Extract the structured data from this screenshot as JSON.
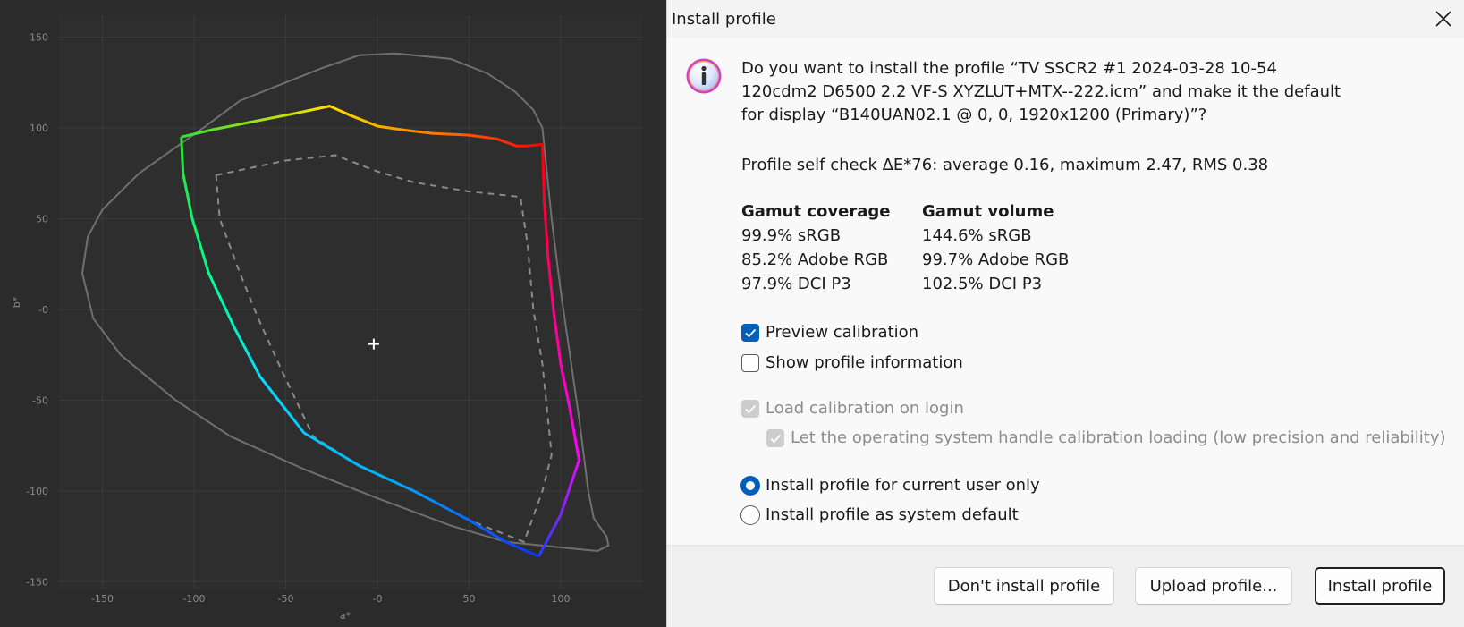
{
  "plot": {
    "x_label": "a*",
    "y_label": "b*",
    "x_ticks": [
      "-150",
      "-100",
      "-50",
      "-0",
      "50",
      "100"
    ],
    "y_ticks": [
      "150",
      "100",
      "50",
      "-0",
      "-50",
      "-100",
      "-150"
    ]
  },
  "chart_data": {
    "type": "line",
    "xlabel": "a*",
    "ylabel": "b*",
    "xlim": [
      -165,
      145
    ],
    "ylim": [
      -152,
      152
    ],
    "grid": true,
    "series": [
      {
        "points": [
          [
            -107,
            95
          ],
          [
            -90,
            99
          ],
          [
            -70,
            103
          ],
          [
            -45,
            108
          ],
          [
            -26,
            112
          ],
          [
            -15,
            107
          ],
          [
            0,
            101
          ],
          [
            13,
            99
          ],
          [
            30,
            97
          ],
          [
            50,
            96
          ],
          [
            65,
            94
          ],
          [
            76,
            90
          ],
          [
            82,
            90
          ],
          [
            90,
            91
          ],
          [
            91,
            60
          ],
          [
            93,
            30
          ],
          [
            96,
            0
          ],
          [
            100,
            -30
          ],
          [
            105,
            -55
          ],
          [
            110,
            -83
          ],
          [
            100,
            -113
          ],
          [
            88,
            -136
          ],
          [
            70,
            -128
          ],
          [
            50,
            -116
          ],
          [
            20,
            -100
          ],
          [
            -10,
            -86
          ],
          [
            -40,
            -68
          ],
          [
            -64,
            -37
          ],
          [
            -78,
            -10
          ],
          [
            -92,
            20
          ],
          [
            -101,
            50
          ],
          [
            -106,
            75
          ],
          [
            -107,
            95
          ]
        ],
        "colors": [
          "#32e032",
          "#ffe000",
          "#ff7a00",
          "#ff0000",
          "#ff00ff",
          "#2040ff",
          "#00e0ff",
          "#32e032"
        ]
      },
      {
        "points": [
          [
            -88,
            74
          ],
          [
            -50,
            82
          ],
          [
            -23,
            85
          ],
          [
            0,
            76
          ],
          [
            20,
            70
          ],
          [
            50,
            65
          ],
          [
            78,
            62
          ],
          [
            82,
            35
          ],
          [
            85,
            0
          ],
          [
            90,
            -30
          ],
          [
            95,
            -80
          ],
          [
            90,
            -100
          ],
          [
            80,
            -128
          ],
          [
            50,
            -116
          ],
          [
            20,
            -100
          ],
          [
            -10,
            -86
          ],
          [
            -35,
            -70
          ],
          [
            -52,
            -34
          ],
          [
            -65,
            -5
          ],
          [
            -75,
            20
          ],
          [
            -86,
            50
          ],
          [
            -88,
            74
          ]
        ]
      },
      {
        "points": [
          [
            -161,
            20
          ],
          [
            -158,
            40
          ],
          [
            -150,
            55
          ],
          [
            -130,
            75
          ],
          [
            -95,
            100
          ],
          [
            -75,
            115
          ],
          [
            -55,
            123
          ],
          [
            -30,
            133
          ],
          [
            -10,
            140
          ],
          [
            10,
            141
          ],
          [
            40,
            138
          ],
          [
            60,
            130
          ],
          [
            75,
            120
          ],
          [
            85,
            110
          ],
          [
            90,
            100
          ],
          [
            92,
            80
          ],
          [
            95,
            50
          ],
          [
            100,
            10
          ],
          [
            105,
            -25
          ],
          [
            110,
            -60
          ],
          [
            115,
            -100
          ],
          [
            118,
            -115
          ],
          [
            125,
            -125
          ],
          [
            126,
            -130
          ],
          [
            120,
            -133
          ],
          [
            110,
            -132
          ],
          [
            90,
            -130
          ],
          [
            70,
            -128
          ],
          [
            40,
            -119
          ],
          [
            0,
            -104
          ],
          [
            -40,
            -88
          ],
          [
            -80,
            -70
          ],
          [
            -110,
            -50
          ],
          [
            -140,
            -25
          ],
          [
            -155,
            -5
          ],
          [
            -161,
            20
          ]
        ]
      }
    ],
    "white_point": [
      -2,
      -19
    ]
  },
  "dialog": {
    "title": "Install profile",
    "question_line1": "Do you want to install the profile “TV SSCR2 #1 2024-03-28 10-54",
    "question_line2": "120cdm2 D6500 2.2 VF-S XYZLUT+MTX--222.icm” and make it the default",
    "question_line3": "for display “B140UAN02.1 @ 0, 0, 1920x1200 (Primary)”?",
    "self_check": "Profile self check ΔE*76: average 0.16, maximum 2.47, RMS 0.38",
    "coverage_header": "Gamut coverage",
    "volume_header": "Gamut volume",
    "coverage": [
      "99.9% sRGB",
      "85.2% Adobe RGB",
      "97.9% DCI P3"
    ],
    "volume": [
      "144.6% sRGB",
      "99.7% Adobe RGB",
      "102.5% DCI P3"
    ],
    "preview_calibration": "Preview calibration",
    "show_profile_info": "Show profile information",
    "load_calibration": "Load calibration on login",
    "os_handle": "Let the operating system handle calibration loading (low precision and reliability)",
    "install_current_user": "Install profile for current user only",
    "install_system_default": "Install profile as system default",
    "buttons": {
      "dont_install": "Don't install profile",
      "upload": "Upload profile...",
      "install": "Install profile"
    }
  },
  "state": {
    "preview_calibration": true,
    "show_profile_info": false,
    "load_calibration": true,
    "os_handle": true,
    "install_scope": "current user"
  },
  "icons": {
    "info": "info-icon",
    "close": "close-icon",
    "check": "checkmark-icon"
  },
  "colors": {
    "accent": "#005fb8",
    "plot_background": "#2b2b2b"
  }
}
